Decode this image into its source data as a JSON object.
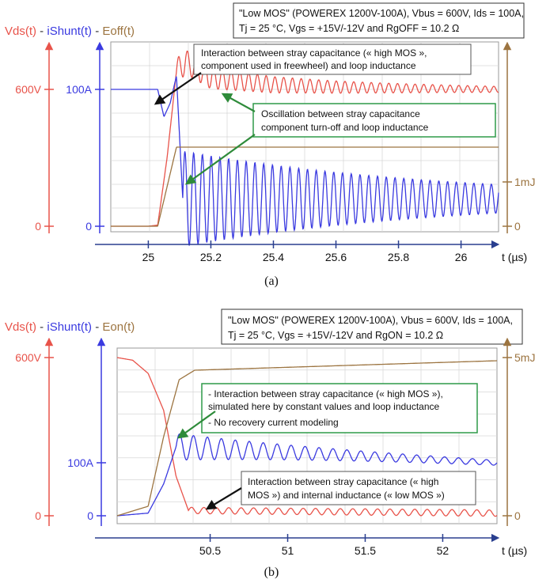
{
  "colors": {
    "vds": "#e8534a",
    "ishunt": "#3a3ae0",
    "energy": "#9c7440",
    "axis_blue": "#2a3f8f",
    "arrow_green": "#2e8b3a",
    "arrow_black": "#111111",
    "box_green": "#2e9a48",
    "grid": "#d6d6d6",
    "plot_border": "#9a9a9a"
  },
  "chart_data": [
    {
      "type": "line",
      "caption": "(a)",
      "title_parts": {
        "vds": "Vds(t)",
        "sep1": " - ",
        "ishunt": "iShunt(t)",
        "sep2": " - ",
        "energy": "Eoff(t)"
      },
      "info_lines": [
        "\"Low MOS\" (POWEREX 1200V-100A), Vbus = 600V, Ids = 100A,",
        "Tj = 25 °C, Vgs = +15V/-12V and RgOFF = 10.2 Ω"
      ],
      "xlabel": "t (µs)",
      "x_ticks": [
        25,
        25.2,
        25.4,
        25.6,
        25.8,
        26
      ],
      "x_tick_labels": [
        "25",
        "25.2",
        "25.4",
        "25.6",
        "25.8",
        "26"
      ],
      "xlim": [
        24.88,
        26.12
      ],
      "axis_labels": {
        "vds_top": "600V",
        "vds_zero": "0",
        "ishunt_top": "100A",
        "ishunt_zero": "0",
        "energy_mid": "1mJ",
        "energy_zero": "0"
      },
      "annotations": [
        "Interaction between stray capacitance (« high MOS »,",
        "component used in freewheel) and loop inductance",
        "Oscillation between stray capacitance",
        "component turn-off and loop inductance"
      ],
      "series": [
        {
          "name": "Vds(t)",
          "unit": "V",
          "points": [
            [
              24.88,
              0
            ],
            [
              25.0,
              0
            ],
            [
              25.03,
              5
            ],
            [
              25.06,
              300
            ],
            [
              25.09,
              680
            ],
            [
              25.12,
              720
            ],
            [
              25.2,
              650
            ],
            [
              25.4,
              620
            ],
            [
              25.6,
              610
            ],
            [
              25.8,
              605
            ],
            [
              26.12,
              600
            ]
          ],
          "steady": 600,
          "osc_amp": 55,
          "osc_decay": 1.4,
          "osc_period": 0.028,
          "osc_start": 25.09
        },
        {
          "name": "iShunt(t)",
          "unit": "A",
          "points": [
            [
              24.88,
              100
            ],
            [
              25.03,
              100
            ],
            [
              25.05,
              80
            ],
            [
              25.07,
              90
            ],
            [
              25.09,
              110
            ],
            [
              25.11,
              20
            ],
            [
              26.12,
              20
            ]
          ],
          "steady": 20,
          "osc_amp": 35,
          "osc_decay": 1.2,
          "osc_period": 0.028,
          "osc_start": 25.11
        },
        {
          "name": "Eoff(t)",
          "unit": "mJ",
          "points": [
            [
              24.88,
              0
            ],
            [
              25.03,
              0
            ],
            [
              25.09,
              1.0
            ],
            [
              26.12,
              1.0
            ]
          ]
        }
      ]
    },
    {
      "type": "line",
      "caption": "(b)",
      "title_parts": {
        "vds": "Vds(t)",
        "sep1": " - ",
        "ishunt": "iShunt(t)",
        "sep2": " - ",
        "energy": "Eon(t)"
      },
      "info_lines": [
        "\"Low MOS\" (POWEREX 1200V-100A), Vbus = 600V, Ids = 100A,",
        "Tj = 25 °C, Vgs = +15V/-12V and RgON = 10.2 Ω"
      ],
      "xlabel": "t (µs)",
      "x_ticks": [
        50.5,
        51,
        51.5,
        52
      ],
      "x_tick_labels": [
        "50.5",
        "51",
        "51.5",
        "52"
      ],
      "xlim": [
        49.9,
        52.35
      ],
      "axis_labels": {
        "vds_top": "600V",
        "vds_zero": "0",
        "ishunt_top": "100A",
        "ishunt_zero": "0",
        "energy_top": "5mJ",
        "energy_zero": "0"
      },
      "annotations": [
        "- Interaction between stray capacitance (« high MOS »),",
        "simulated here by constant values and loop inductance",
        "- No recovery current modeling",
        "Interaction between stray capacitance (« high",
        "MOS ») and internal inductance (« low MOS »)"
      ],
      "series": [
        {
          "name": "Vds(t)",
          "unit": "V",
          "points": [
            [
              49.9,
              600
            ],
            [
              50.0,
              590
            ],
            [
              50.1,
              540
            ],
            [
              50.2,
              400
            ],
            [
              50.28,
              150
            ],
            [
              50.36,
              20
            ],
            [
              52.35,
              10
            ]
          ],
          "osc_amp": 12,
          "osc_period": 0.08,
          "osc_start": 50.36
        },
        {
          "name": "iShunt(t)",
          "unit": "A",
          "points": [
            [
              49.9,
              0
            ],
            [
              50.1,
              5
            ],
            [
              50.2,
              60
            ],
            [
              50.28,
              130
            ],
            [
              52.35,
              100
            ]
          ],
          "osc_amp": 25,
          "osc_decay": 0.8,
          "osc_period": 0.09,
          "osc_start": 50.28
        },
        {
          "name": "Eon(t)",
          "unit": "mJ",
          "points": [
            [
              49.9,
              0
            ],
            [
              50.1,
              0.3
            ],
            [
              50.2,
              2.5
            ],
            [
              50.3,
              4.3
            ],
            [
              50.4,
              4.6
            ],
            [
              52.35,
              4.9
            ]
          ]
        }
      ]
    }
  ]
}
